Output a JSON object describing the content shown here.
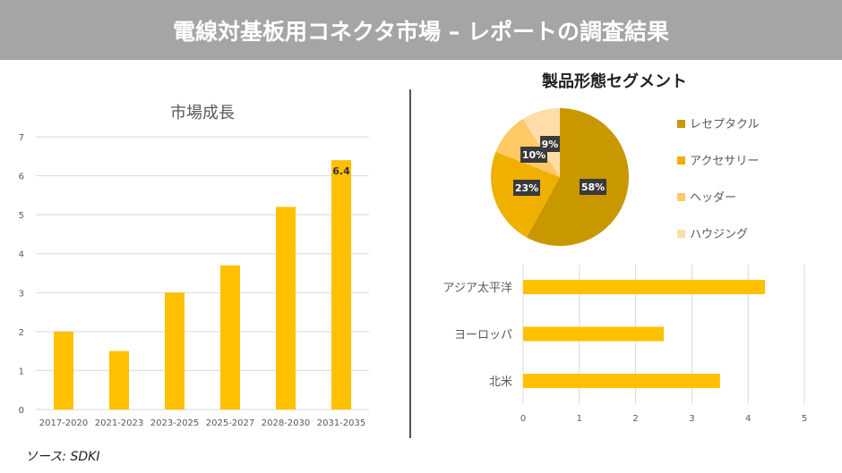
{
  "header": {
    "title": "電線対基板用コネクタ市場 – レポートの調査結果"
  },
  "source": "ソース: SDKI",
  "chart_data": [
    {
      "type": "bar",
      "title": "市場成長",
      "categories": [
        "2017-2020",
        "2021-2023",
        "2023-2025",
        "2025-2027",
        "2028-2030",
        "2031-2035"
      ],
      "values": [
        2,
        1.5,
        3,
        3.7,
        5.2,
        6.4
      ],
      "ylim": [
        0,
        7
      ],
      "yticks": [
        "0",
        "1",
        "2",
        "3",
        "4",
        "5",
        "6",
        "7"
      ],
      "data_labels": {
        "5": "6.4"
      },
      "grid": true,
      "color": "#ffc000"
    },
    {
      "type": "pie",
      "title": "製品形態セグメント",
      "labels": [
        "レセプタクル",
        "アクセサリー",
        "ヘッダー",
        "ハウジング"
      ],
      "values": [
        58,
        23,
        10,
        9
      ],
      "value_labels": [
        "58%",
        "23%",
        "10%",
        "9%"
      ],
      "colors": [
        "#c99700",
        "#f0b000",
        "#ffc966",
        "#ffdca8"
      ],
      "legend": "right"
    },
    {
      "type": "bar",
      "orientation": "horizontal",
      "categories": [
        "アジア太平洋",
        "ヨーロッパ",
        "北米"
      ],
      "values": [
        4.3,
        2.5,
        3.5
      ],
      "xlim": [
        0,
        5
      ],
      "xticks": [
        "0",
        "1",
        "2",
        "3",
        "4",
        "5"
      ],
      "grid": true,
      "color": "#ffc000"
    }
  ]
}
